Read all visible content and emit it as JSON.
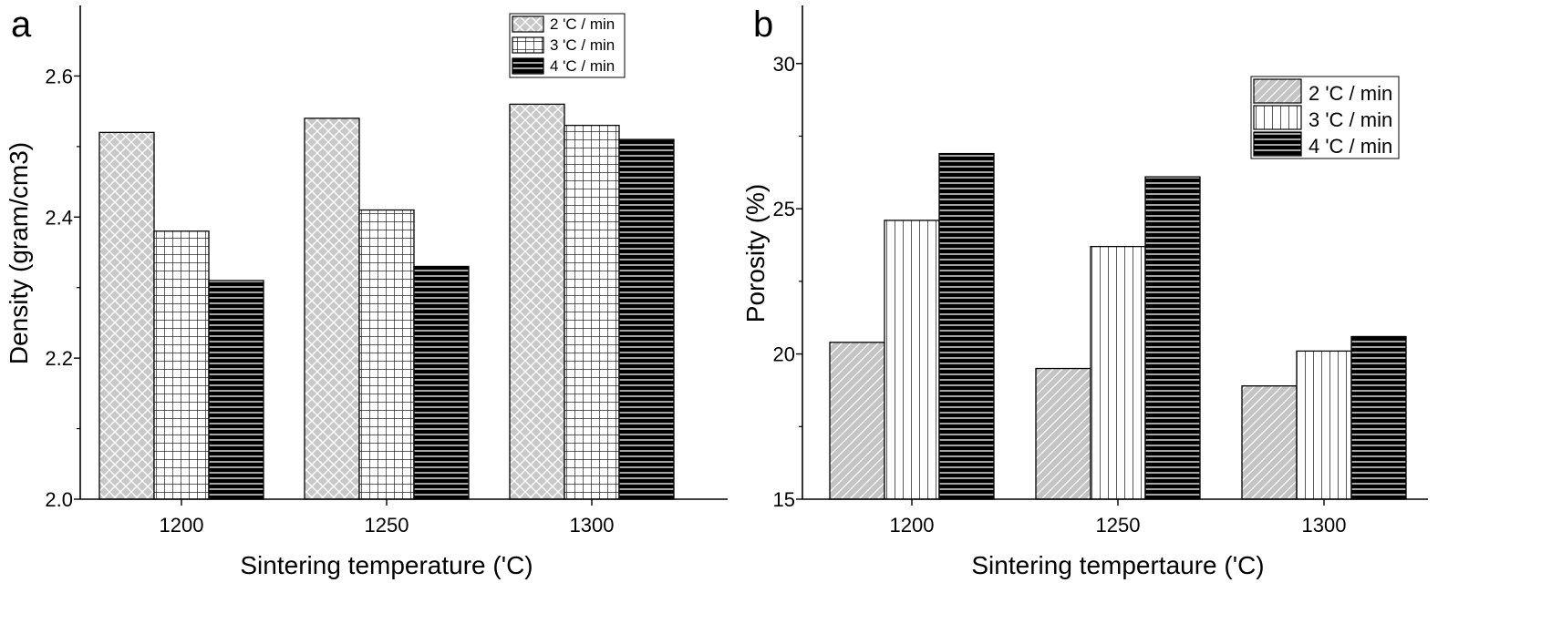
{
  "chart_data": [
    {
      "type": "bar",
      "panel": "a",
      "xlabel": "Sintering temperature ('C)",
      "ylabel": "Density (gram/cm3)",
      "categories": [
        "1200",
        "1250",
        "1300"
      ],
      "ylim": [
        2.0,
        2.7
      ],
      "yticks": [
        "2.0",
        "2.2",
        "2.4",
        "2.6"
      ],
      "legend_position": "top-right",
      "series": [
        {
          "name": "2 'C / min",
          "values": [
            2.52,
            2.54,
            2.56
          ],
          "pattern": "crosshatch-gray"
        },
        {
          "name": "3 'C / min",
          "values": [
            2.38,
            2.41,
            2.53
          ],
          "pattern": "grid"
        },
        {
          "name": "4 'C / min",
          "values": [
            2.31,
            2.33,
            2.51
          ],
          "pattern": "horizontal-lines-black"
        }
      ]
    },
    {
      "type": "bar",
      "panel": "b",
      "xlabel": "Sintering tempertaure ('C)",
      "ylabel": "Porosity (%)",
      "categories": [
        "1200",
        "1250",
        "1300"
      ],
      "ylim": [
        15,
        32
      ],
      "yticks": [
        "15",
        "20",
        "25",
        "30"
      ],
      "legend_position": "top-right",
      "series": [
        {
          "name": "2 'C / min",
          "values": [
            20.4,
            19.5,
            18.9
          ],
          "pattern": "diagonal-gray"
        },
        {
          "name": "3 'C / min",
          "values": [
            24.6,
            23.7,
            20.1
          ],
          "pattern": "vertical-lines"
        },
        {
          "name": "4 'C / min",
          "values": [
            26.9,
            26.1,
            20.6
          ],
          "pattern": "horizontal-lines-black"
        }
      ]
    }
  ]
}
